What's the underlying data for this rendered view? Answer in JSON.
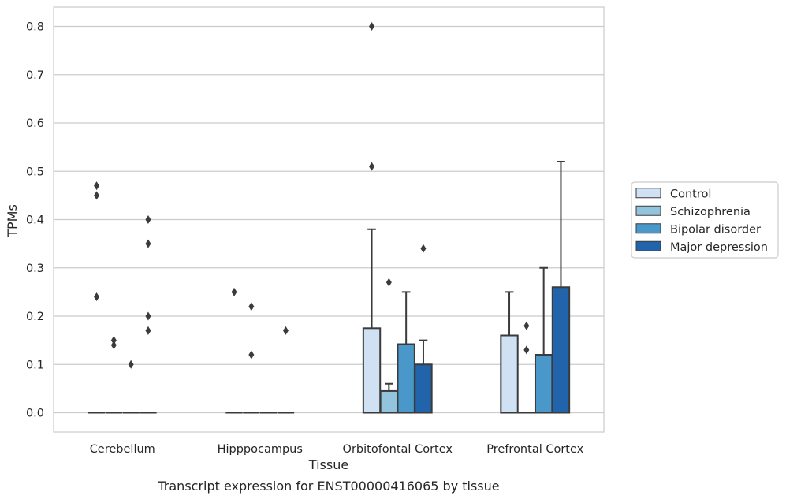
{
  "chart_data": {
    "type": "box",
    "title": "",
    "caption": "Transcript expression for ENST00000416065 by tissue",
    "xlabel": "Tissue",
    "ylabel": "TPMs",
    "ylim": [
      -0.04,
      0.84
    ],
    "yticks": [
      0.0,
      0.1,
      0.2,
      0.3,
      0.4,
      0.5,
      0.6,
      0.7,
      0.8
    ],
    "ytick_labels": [
      "0.0",
      "0.1",
      "0.2",
      "0.3",
      "0.4",
      "0.5",
      "0.6",
      "0.7",
      "0.8"
    ],
    "grid": true,
    "legend_position": "right",
    "categories": [
      "Cerebellum",
      "Hipppocampus",
      "Orbitofontal Cortex",
      "Prefrontal Cortex"
    ],
    "series": [
      {
        "name": "Control",
        "color": "#cfe1f2",
        "boxes": [
          {
            "q1": 0,
            "q3": 0,
            "whisker_high": 0,
            "outliers": [
              0.24,
              0.45,
              0.47
            ]
          },
          {
            "q1": 0,
            "q3": 0,
            "whisker_high": 0,
            "outliers": [
              0.25
            ]
          },
          {
            "q1": 0,
            "q3": 0.175,
            "whisker_high": 0.38,
            "outliers": [
              0.51,
              0.8
            ]
          },
          {
            "q1": 0,
            "q3": 0.16,
            "whisker_high": 0.25,
            "outliers": []
          }
        ]
      },
      {
        "name": "Schizophrenia",
        "color": "#93c4de",
        "boxes": [
          {
            "q1": 0,
            "q3": 0,
            "whisker_high": 0,
            "outliers": [
              0.14,
              0.15
            ]
          },
          {
            "q1": 0,
            "q3": 0,
            "whisker_high": 0,
            "outliers": [
              0.12,
              0.22
            ]
          },
          {
            "q1": 0,
            "q3": 0.045,
            "whisker_high": 0.06,
            "outliers": [
              0.27
            ]
          },
          {
            "q1": 0,
            "q3": 0,
            "whisker_high": 0,
            "outliers": [
              0.13,
              0.18
            ]
          }
        ]
      },
      {
        "name": "Bipolar disorder",
        "color": "#4a98c9",
        "boxes": [
          {
            "q1": 0,
            "q3": 0,
            "whisker_high": 0,
            "outliers": [
              0.1
            ]
          },
          {
            "q1": 0,
            "q3": 0,
            "whisker_high": 0,
            "outliers": []
          },
          {
            "q1": 0,
            "q3": 0.142,
            "whisker_high": 0.25,
            "outliers": []
          },
          {
            "q1": 0,
            "q3": 0.12,
            "whisker_high": 0.3,
            "outliers": []
          }
        ]
      },
      {
        "name": "Major depression",
        "color": "#2264ab",
        "boxes": [
          {
            "q1": 0,
            "q3": 0,
            "whisker_high": 0,
            "outliers": [
              0.17,
              0.2,
              0.4,
              0.35
            ]
          },
          {
            "q1": 0,
            "q3": 0,
            "whisker_high": 0,
            "outliers": [
              0.17
            ]
          },
          {
            "q1": 0,
            "q3": 0.1,
            "whisker_high": 0.15,
            "outliers": [
              0.34
            ]
          },
          {
            "q1": 0,
            "q3": 0.26,
            "whisker_high": 0.52,
            "outliers": []
          }
        ]
      }
    ]
  }
}
